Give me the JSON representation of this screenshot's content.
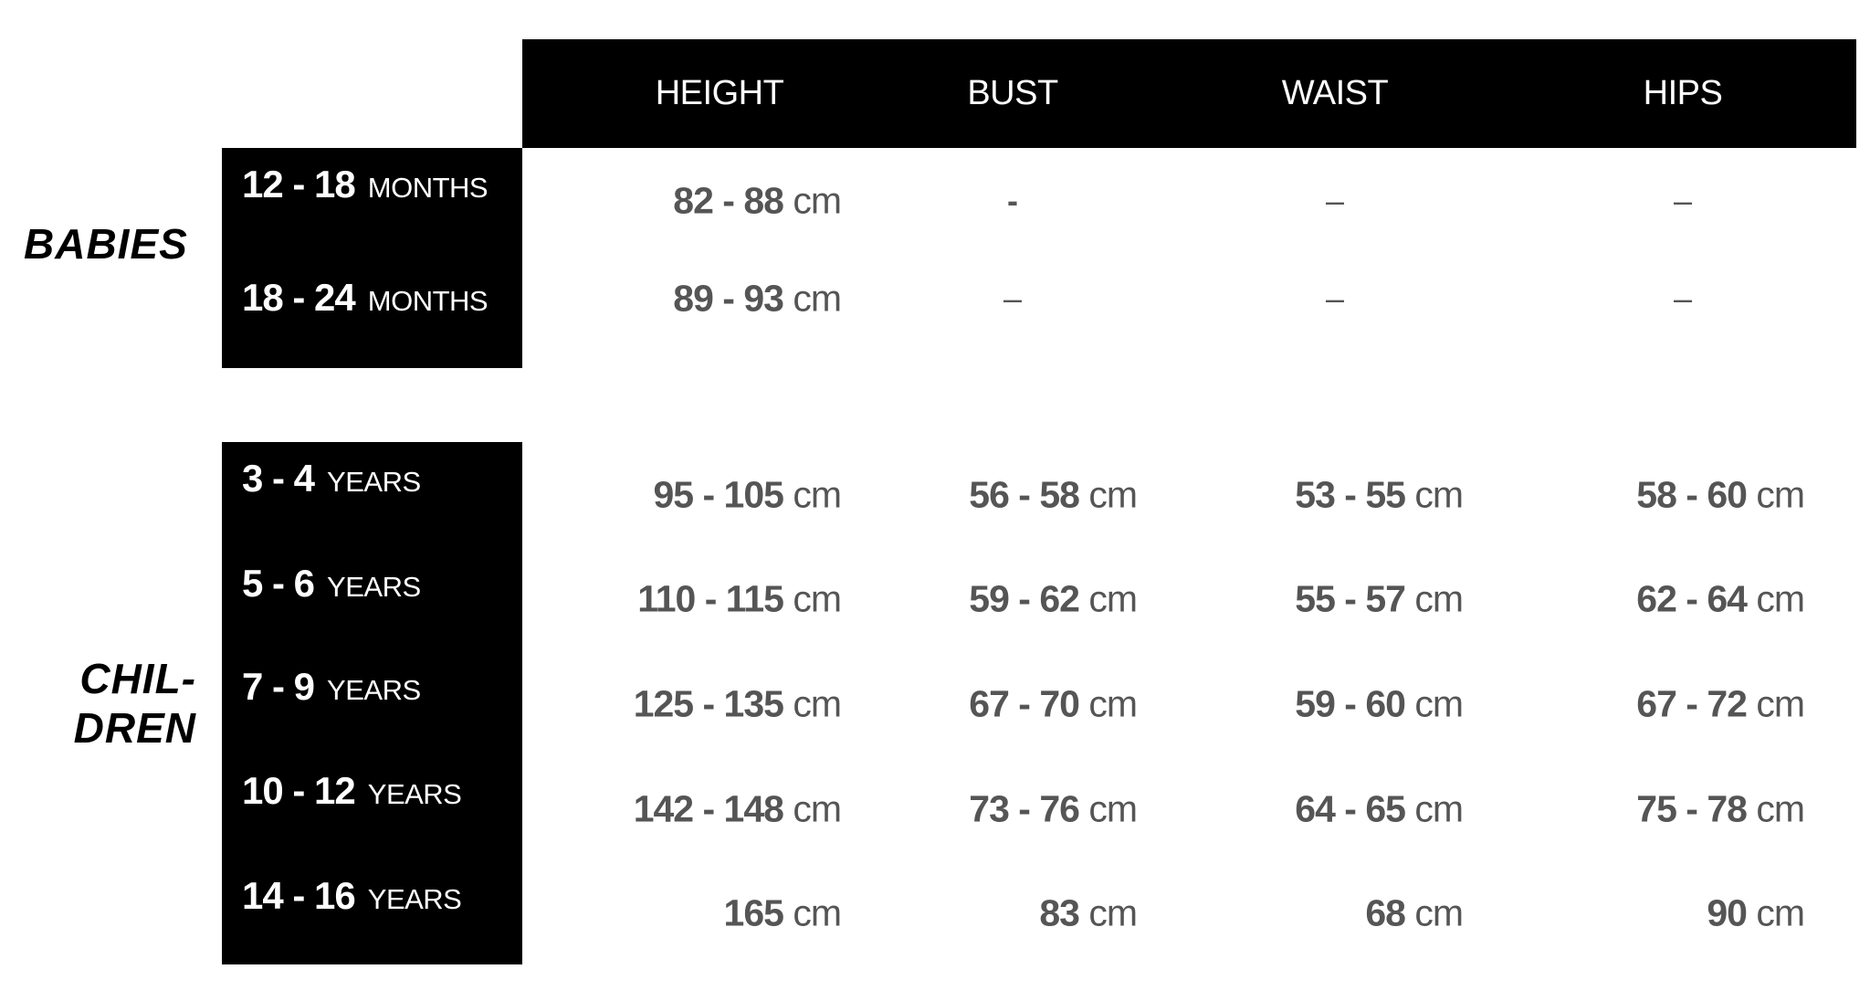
{
  "headers": [
    "HEIGHT",
    "BUST",
    "WAIST",
    "HIPS"
  ],
  "groups": {
    "babies": {
      "label": "BABIES",
      "rows": [
        {
          "age": "12 - 18",
          "unit": "MONTHS",
          "height": "82 - 88",
          "bust": "-",
          "waist": "–",
          "hips": "–"
        },
        {
          "age": "18 - 24",
          "unit": "MONTHS",
          "height": "89 - 93",
          "bust": "–",
          "waist": "–",
          "hips": "–"
        }
      ]
    },
    "children": {
      "label_line1": "CHIL-",
      "label_line2": "DREN",
      "rows": [
        {
          "age": "3 - 4",
          "unit": "YEARS",
          "height": "95 - 105",
          "bust": "56 - 58",
          "waist": "53 - 55",
          "hips": "58 - 60"
        },
        {
          "age": "5 - 6",
          "unit": "YEARS",
          "height": "110 - 115",
          "bust": "59 - 62",
          "waist": "55 - 57",
          "hips": "62 - 64"
        },
        {
          "age": "7 - 9",
          "unit": "YEARS",
          "height": "125 - 135",
          "bust": "67 - 70",
          "waist": "59 - 60",
          "hips": "67 - 72"
        },
        {
          "age": "10 - 12",
          "unit": "YEARS",
          "height": "142 - 148",
          "bust": "73 - 76",
          "waist": "64 - 65",
          "hips": "75 - 78"
        },
        {
          "age": "14 - 16",
          "unit": "YEARS",
          "height": "165",
          "bust": "83",
          "waist": "68",
          "hips": "90"
        }
      ]
    }
  },
  "unit_cm": "cm"
}
